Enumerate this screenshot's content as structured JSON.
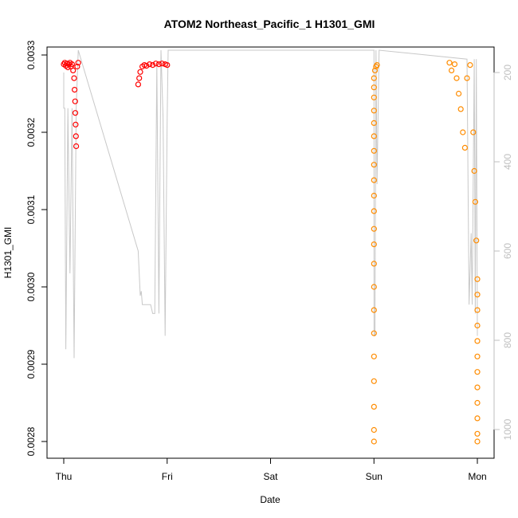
{
  "chart_data": {
    "type": "scatter",
    "title": "ATOM2 Northeast_Pacific_1 H1301_GMI",
    "xlabel": "Date",
    "ylabel": "H1301_GMI",
    "x_tick_labels": [
      "Thu",
      "Fri",
      "Sat",
      "Sun",
      "Mon"
    ],
    "x_tick_positions": [
      0,
      1,
      2,
      3,
      4
    ],
    "xlim": [
      0,
      4.0
    ],
    "ylim": [
      0.00278,
      0.00331
    ],
    "y_ticks": [
      0.0028,
      0.0029,
      0.003,
      0.0031,
      0.0032,
      0.0033
    ],
    "y_tick_labels": [
      "0.0028",
      "0.0029",
      "0.0030",
      "0.0031",
      "0.0032",
      "0.0033"
    ],
    "y2lim": [
      1045,
      145
    ],
    "y2_ticks": [
      200,
      400,
      600,
      800,
      1000
    ],
    "y2_tick_labels": [
      "200",
      "400",
      "600",
      "800",
      "1000"
    ],
    "grid": false,
    "colors": {
      "series_red": "#ff0000",
      "series_orange": "#ff8c00",
      "pressure_line": "#c8c8c8"
    },
    "series": [
      {
        "color": "#ff0000",
        "points": [
          [
            0.0,
            0.003288
          ],
          [
            0.01,
            0.00329
          ],
          [
            0.02,
            0.003286
          ],
          [
            0.03,
            0.003289
          ],
          [
            0.04,
            0.003284
          ],
          [
            0.05,
            0.003288
          ],
          [
            0.06,
            0.00329
          ],
          [
            0.07,
            0.003285
          ],
          [
            0.08,
            0.003288
          ],
          [
            0.09,
            0.00328
          ],
          [
            0.1,
            0.00327
          ],
          [
            0.105,
            0.003255
          ],
          [
            0.11,
            0.00324
          ],
          [
            0.112,
            0.003225
          ],
          [
            0.115,
            0.00321
          ],
          [
            0.118,
            0.003195
          ],
          [
            0.12,
            0.003182
          ],
          [
            0.13,
            0.003285
          ],
          [
            0.14,
            0.00329
          ],
          [
            0.72,
            0.003262
          ],
          [
            0.73,
            0.00327
          ],
          [
            0.74,
            0.003278
          ],
          [
            0.76,
            0.003285
          ],
          [
            0.78,
            0.003287
          ],
          [
            0.8,
            0.003286
          ],
          [
            0.83,
            0.003288
          ],
          [
            0.86,
            0.003287
          ],
          [
            0.89,
            0.003289
          ],
          [
            0.92,
            0.003288
          ],
          [
            0.95,
            0.003289
          ],
          [
            0.98,
            0.003288
          ],
          [
            1.0,
            0.003287
          ]
        ]
      },
      {
        "color": "#ff8c00",
        "points": [
          [
            3.0,
            0.0028
          ],
          [
            3.0,
            0.002815
          ],
          [
            3.0,
            0.002845
          ],
          [
            3.0,
            0.002878
          ],
          [
            3.0,
            0.00291
          ],
          [
            3.0,
            0.00294
          ],
          [
            3.0,
            0.00297
          ],
          [
            3.0,
            0.003
          ],
          [
            3.0,
            0.00303
          ],
          [
            3.0,
            0.003055
          ],
          [
            3.0,
            0.003075
          ],
          [
            3.0,
            0.003098
          ],
          [
            3.0,
            0.003118
          ],
          [
            3.0,
            0.003138
          ],
          [
            3.0,
            0.003158
          ],
          [
            3.0,
            0.003176
          ],
          [
            3.0,
            0.003195
          ],
          [
            3.0,
            0.003212
          ],
          [
            3.0,
            0.003228
          ],
          [
            3.0,
            0.003245
          ],
          [
            3.0,
            0.003258
          ],
          [
            3.0,
            0.00327
          ],
          [
            3.01,
            0.00328
          ],
          [
            3.02,
            0.003285
          ],
          [
            3.03,
            0.003287
          ],
          [
            3.73,
            0.00329
          ],
          [
            3.75,
            0.00328
          ],
          [
            3.78,
            0.003288
          ],
          [
            3.8,
            0.00327
          ],
          [
            3.82,
            0.00325
          ],
          [
            3.84,
            0.00323
          ],
          [
            3.86,
            0.0032
          ],
          [
            3.88,
            0.00318
          ],
          [
            3.9,
            0.00327
          ],
          [
            3.93,
            0.003287
          ],
          [
            3.96,
            0.0032
          ],
          [
            3.97,
            0.00315
          ],
          [
            3.98,
            0.00311
          ],
          [
            3.99,
            0.00306
          ],
          [
            4.0,
            0.00301
          ],
          [
            4.0,
            0.00299
          ],
          [
            4.0,
            0.00297
          ],
          [
            4.0,
            0.00295
          ],
          [
            4.0,
            0.00293
          ],
          [
            4.0,
            0.00291
          ],
          [
            4.0,
            0.00289
          ],
          [
            4.0,
            0.00287
          ],
          [
            4.0,
            0.00285
          ],
          [
            4.0,
            0.00283
          ],
          [
            4.0,
            0.00281
          ],
          [
            4.0,
            0.0028
          ]
        ]
      }
    ],
    "pressure_line": [
      [
        0.0,
        200
      ],
      [
        0.0,
        280
      ],
      [
        0.01,
        280
      ],
      [
        0.02,
        820
      ],
      [
        0.04,
        280
      ],
      [
        0.06,
        650
      ],
      [
        0.08,
        280
      ],
      [
        0.1,
        840
      ],
      [
        0.12,
        280
      ],
      [
        0.14,
        150
      ],
      [
        0.72,
        600
      ],
      [
        0.73,
        650
      ],
      [
        0.74,
        700
      ],
      [
        0.75,
        690
      ],
      [
        0.76,
        720
      ],
      [
        0.79,
        720
      ],
      [
        0.8,
        720
      ],
      [
        0.82,
        720
      ],
      [
        0.84,
        720
      ],
      [
        0.86,
        740
      ],
      [
        0.88,
        740
      ],
      [
        0.9,
        180
      ],
      [
        0.92,
        740
      ],
      [
        0.94,
        150
      ],
      [
        0.96,
        300
      ],
      [
        0.98,
        790
      ],
      [
        1.0,
        300
      ],
      [
        1.01,
        150
      ],
      [
        3.0,
        150
      ],
      [
        3.0,
        790
      ],
      [
        3.01,
        790
      ],
      [
        3.02,
        150
      ],
      [
        3.03,
        450
      ],
      [
        3.05,
        150
      ],
      [
        3.9,
        170
      ],
      [
        3.92,
        720
      ],
      [
        3.94,
        560
      ],
      [
        3.95,
        720
      ],
      [
        3.97,
        170
      ],
      [
        3.98,
        740
      ],
      [
        3.99,
        170
      ],
      [
        4.0,
        780
      ],
      [
        4.0,
        790
      ]
    ]
  }
}
